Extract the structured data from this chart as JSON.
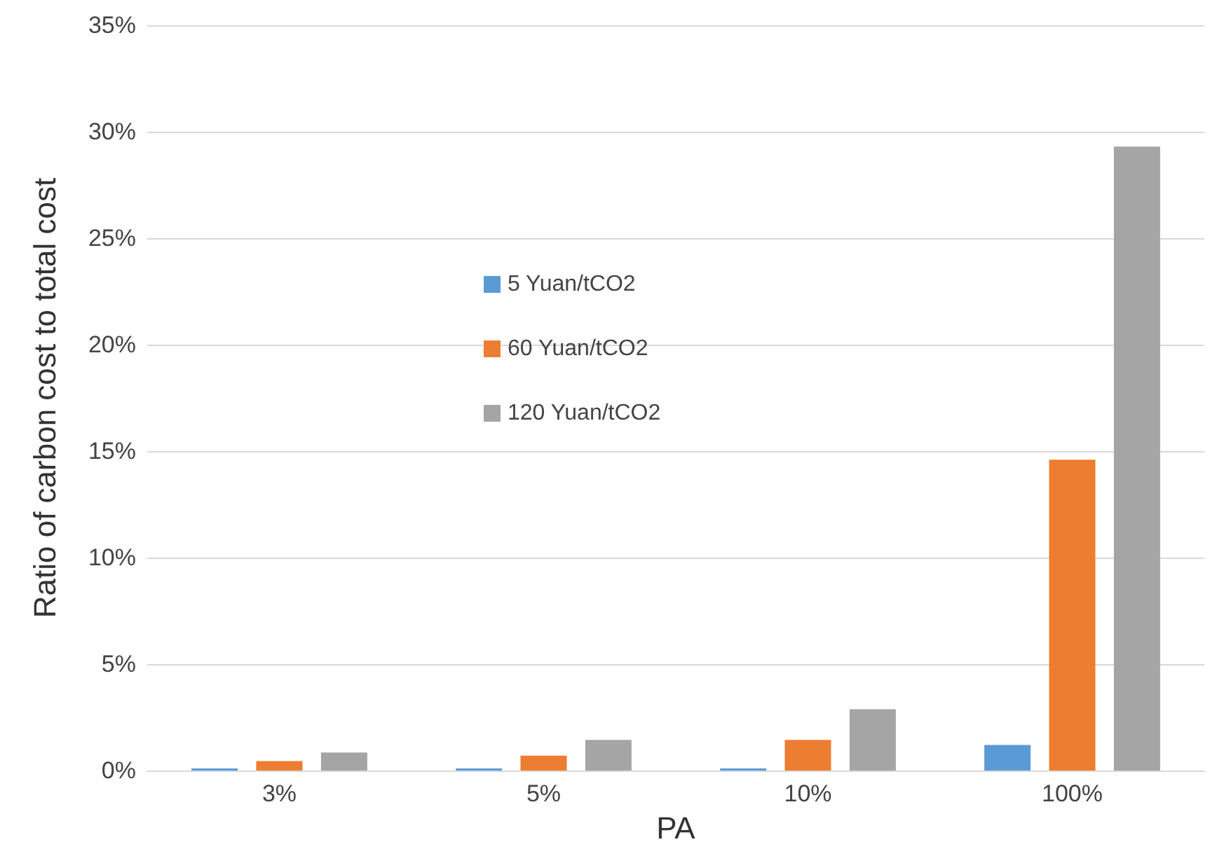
{
  "chart_data": {
    "type": "bar",
    "xlabel": "PA",
    "ylabel": "Ratio of carbon cost to total cost",
    "categories": [
      "3%",
      "5%",
      "10%",
      "100%"
    ],
    "series": [
      {
        "name": "5 Yuan/tCO2",
        "color": "#5b9bd5",
        "values": [
          0.1,
          0.1,
          0.1,
          1.2
        ]
      },
      {
        "name": "60 Yuan/tCO2",
        "color": "#ed7d31",
        "values": [
          0.44,
          0.7,
          1.44,
          14.6
        ]
      },
      {
        "name": "120 Yuan/tCO2",
        "color": "#a5a5a5",
        "values": [
          0.85,
          1.44,
          2.88,
          29.3
        ]
      }
    ],
    "ylim": [
      0,
      35
    ],
    "yticks": [
      {
        "value": 0,
        "label": "0%"
      },
      {
        "value": 5,
        "label": "5%"
      },
      {
        "value": 10,
        "label": "10%"
      },
      {
        "value": 15,
        "label": "15%"
      },
      {
        "value": 20,
        "label": "20%"
      },
      {
        "value": 25,
        "label": "25%"
      },
      {
        "value": 30,
        "label": "30%"
      },
      {
        "value": 35,
        "label": "35%"
      }
    ],
    "grid": "y",
    "legend": "center"
  }
}
